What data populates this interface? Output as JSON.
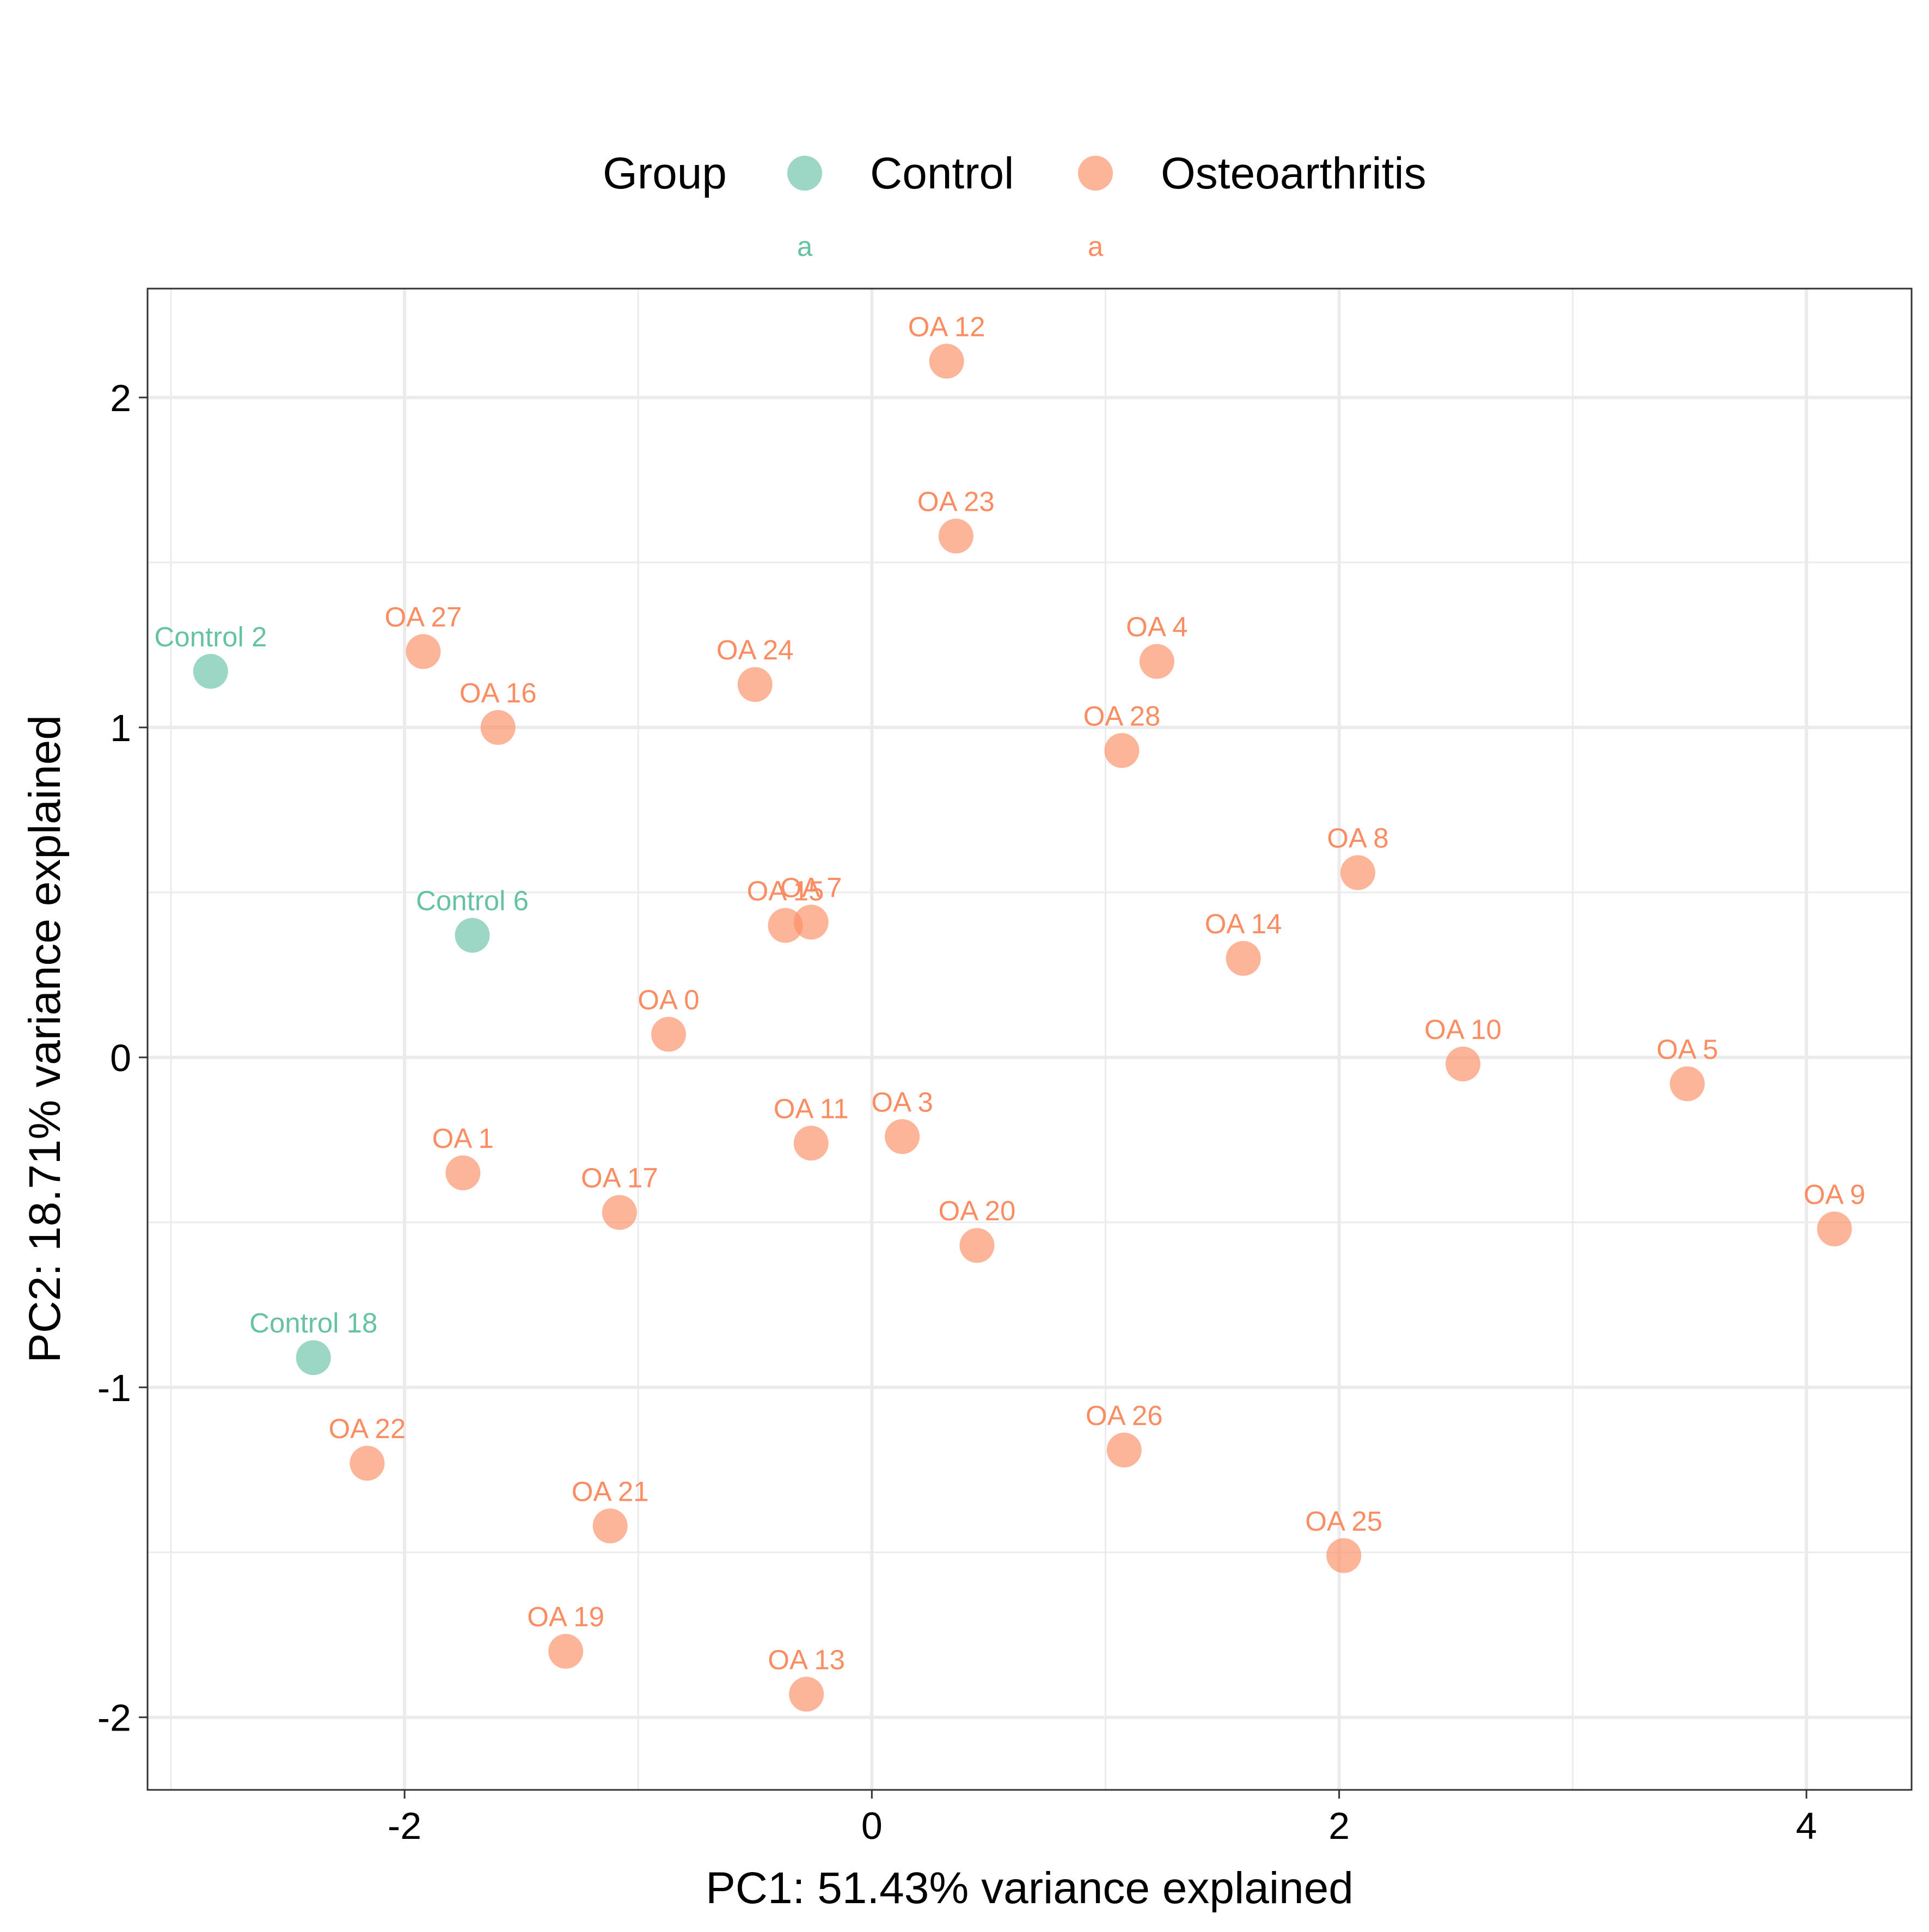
{
  "chart_data": {
    "type": "scatter",
    "xlabel": "PC1: 51.43% variance explained",
    "ylabel": "PC2: 18.71% variance explained",
    "xlim": [
      -3.1,
      4.45
    ],
    "ylim": [
      -2.22,
      2.33
    ],
    "x_ticks": [
      -2,
      0,
      2,
      4
    ],
    "y_ticks": [
      -2,
      -1,
      0,
      1,
      2
    ],
    "x_tick_labels": [
      "-2",
      "0",
      "2",
      "4"
    ],
    "y_tick_labels": [
      "-2",
      "-1",
      "0",
      "1",
      "2"
    ],
    "grid": true,
    "legend": {
      "title": "Group",
      "position": "top",
      "key_glyph_label": "a",
      "entries": [
        {
          "name": "Control",
          "color": "#66C2A5"
        },
        {
          "name": "Osteoarthritis",
          "color": "#FC8D62"
        }
      ]
    },
    "series": [
      {
        "name": "Control",
        "color": "#66C2A5",
        "points": [
          {
            "label": "Control 2",
            "x": -2.83,
            "y": 1.17
          },
          {
            "label": "Control 6",
            "x": -1.71,
            "y": 0.37
          },
          {
            "label": "Control 18",
            "x": -2.39,
            "y": -0.91
          }
        ]
      },
      {
        "name": "Osteoarthritis",
        "color": "#FC8D62",
        "points": [
          {
            "label": "OA 12",
            "x": 0.32,
            "y": 2.11
          },
          {
            "label": "OA 23",
            "x": 0.36,
            "y": 1.58
          },
          {
            "label": "OA 27",
            "x": -1.92,
            "y": 1.23
          },
          {
            "label": "OA 24",
            "x": -0.5,
            "y": 1.13
          },
          {
            "label": "OA 4",
            "x": 1.22,
            "y": 1.2
          },
          {
            "label": "OA 16",
            "x": -1.6,
            "y": 1.0
          },
          {
            "label": "OA 28",
            "x": 1.07,
            "y": 0.93
          },
          {
            "label": "OA 8",
            "x": 2.08,
            "y": 0.56
          },
          {
            "label": "OA 15",
            "x": -0.37,
            "y": 0.4
          },
          {
            "label": "OA 7",
            "x": -0.26,
            "y": 0.41
          },
          {
            "label": "OA 14",
            "x": 1.59,
            "y": 0.3
          },
          {
            "label": "OA 0",
            "x": -0.87,
            "y": 0.07
          },
          {
            "label": "OA 10",
            "x": 2.53,
            "y": -0.02
          },
          {
            "label": "OA 5",
            "x": 3.49,
            "y": -0.08
          },
          {
            "label": "OA 11",
            "x": -0.26,
            "y": -0.26
          },
          {
            "label": "OA 3",
            "x": 0.13,
            "y": -0.24
          },
          {
            "label": "OA 1",
            "x": -1.75,
            "y": -0.35
          },
          {
            "label": "OA 17",
            "x": -1.08,
            "y": -0.47
          },
          {
            "label": "OA 20",
            "x": 0.45,
            "y": -0.57
          },
          {
            "label": "OA 9",
            "x": 4.12,
            "y": -0.52
          },
          {
            "label": "OA 22",
            "x": -2.16,
            "y": -1.23
          },
          {
            "label": "OA 26",
            "x": 1.08,
            "y": -1.19
          },
          {
            "label": "OA 21",
            "x": -1.12,
            "y": -1.42
          },
          {
            "label": "OA 25",
            "x": 2.02,
            "y": -1.51
          },
          {
            "label": "OA 19",
            "x": -1.31,
            "y": -1.8
          },
          {
            "label": "OA 13",
            "x": -0.28,
            "y": -1.93
          }
        ]
      }
    ]
  }
}
